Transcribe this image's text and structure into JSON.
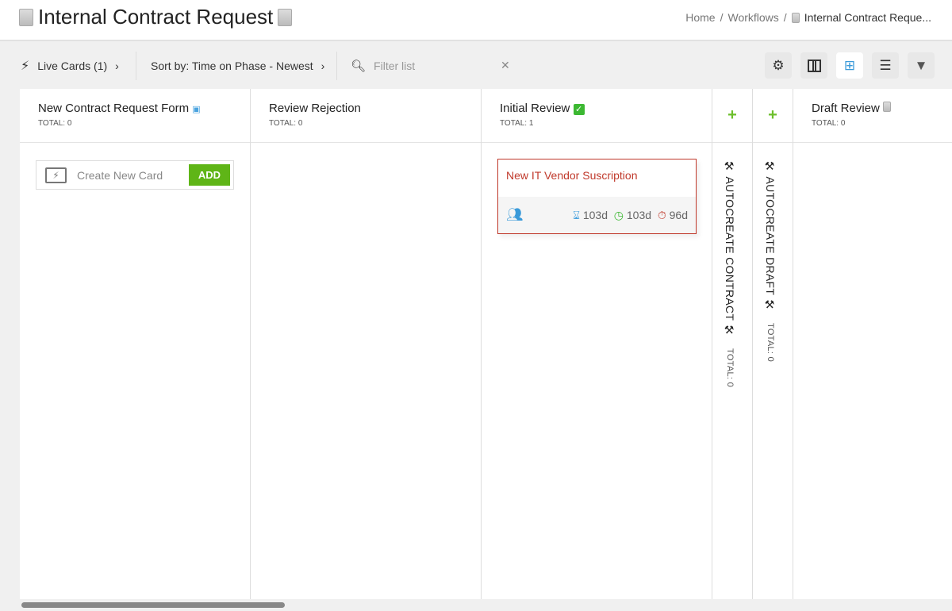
{
  "header": {
    "title": "Internal Contract Request",
    "breadcrumb": [
      "Home",
      "Workflows",
      "Internal Contract Reque..."
    ]
  },
  "toolbar": {
    "live_cards": "Live Cards (1)",
    "sort": "Sort by: Time on Phase - Newest",
    "filter_placeholder": "Filter list",
    "active_view": "grid"
  },
  "columns": [
    {
      "name": "New Contract Request Form",
      "total": "TOTAL: 0"
    },
    {
      "name": "Review Rejection",
      "total": "TOTAL: 0"
    },
    {
      "name": "Initial Review",
      "total": "TOTAL: 1"
    },
    {
      "name": "AUTOCREATE CONTRACT",
      "total": "TOTAL: 0"
    },
    {
      "name": "AUTOCREATE DRAFT",
      "total": "TOTAL: 0"
    },
    {
      "name": "Draft Review",
      "total": "TOTAL: 0"
    }
  ],
  "create": {
    "label": "Create New Card",
    "button": "ADD"
  },
  "card": {
    "title": "New IT Vendor Suscription",
    "hourglass": "103d",
    "clock": "103d",
    "timer": "96d"
  },
  "colors": {
    "accent": "#5fb517",
    "card_border": "#c0392b",
    "active_view": "#3a9ad9"
  }
}
